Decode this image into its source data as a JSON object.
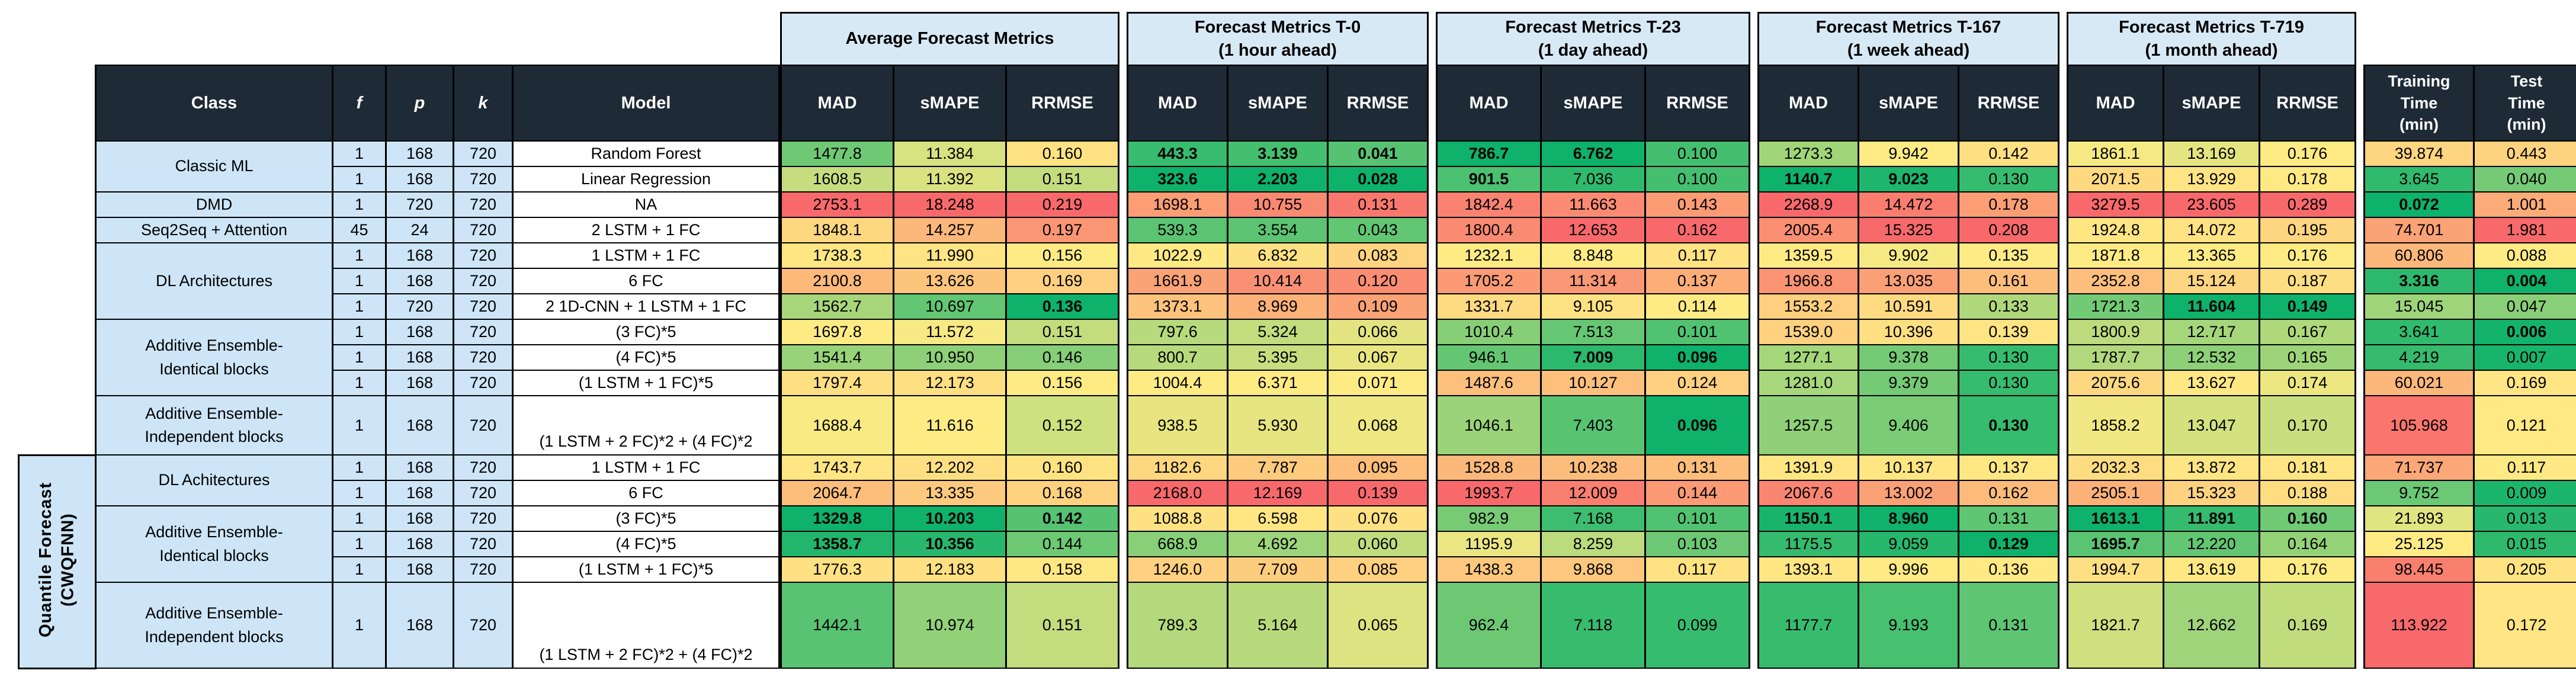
{
  "ui": {
    "left_header": {
      "class": "Class",
      "f": "f",
      "p": "p",
      "k": "k",
      "model": "Model"
    },
    "metric_subheaders": [
      "MAD",
      "sMAPE",
      "RRMSE"
    ],
    "group_titles": [
      [
        "Average Forecast Metrics",
        ""
      ],
      [
        "Forecast Metrics T-0",
        "(1 hour ahead)"
      ],
      [
        "Forecast Metrics T-23",
        "(1 day ahead)"
      ],
      [
        "Forecast Metrics T-167",
        "(1 week ahead)"
      ],
      [
        "Forecast Metrics T-719",
        "(1 month ahead)"
      ]
    ],
    "time_headers": [
      [
        "Training",
        "Time",
        "(min)"
      ],
      [
        "Test",
        "Time",
        "(min)"
      ]
    ],
    "quantile_section_label": "Quantile Forecast\n(CWQFNN)",
    "colors": {
      "header_bg": "#1e2a36",
      "header_text": "#ffffff",
      "group_header_bg": "#d8e9f6",
      "row_label_bg": "#cde5f7",
      "border": "#000000",
      "scale_green_best": "#0eb26a",
      "scale_yellow_mid": "#ffeb84",
      "scale_red_worst": "#f8696b"
    }
  },
  "chart_data": {
    "type": "table",
    "title": "Forecast metric comparison of model classes (color scale per column: green = best, red = worst)",
    "columns": [
      "Avg MAD",
      "Avg sMAPE",
      "Avg RRMSE",
      "T-0 MAD",
      "T-0 sMAPE",
      "T-0 RRMSE",
      "T-23 MAD",
      "T-23 sMAPE",
      "T-23 RRMSE",
      "T-167 MAD",
      "T-167 sMAPE",
      "T-167 RRMSE",
      "T-719 MAD",
      "T-719 sMAPE",
      "T-719 RRMSE",
      "Training Time (min)",
      "Test Time (min)"
    ],
    "rows": [
      {
        "section": "main",
        "class": "Classic ML",
        "f": "1",
        "p": "168",
        "k": "720",
        "model": "Random Forest",
        "values": [
          "1477.8",
          "11.384",
          "0.160",
          "443.3",
          "3.139",
          "0.041",
          "786.7",
          "6.762",
          "0.100",
          "1273.3",
          "9.942",
          "0.142",
          "1861.1",
          "13.169",
          "0.176",
          "39.874",
          "0.443"
        ],
        "bold": [
          3,
          4,
          5,
          6,
          7
        ]
      },
      {
        "section": "main",
        "class": "Classic ML",
        "f": "1",
        "p": "168",
        "k": "720",
        "model": "Linear Regression",
        "values": [
          "1608.5",
          "11.392",
          "0.151",
          "323.6",
          "2.203",
          "0.028",
          "901.5",
          "7.036",
          "0.100",
          "1140.7",
          "9.023",
          "0.130",
          "2071.5",
          "13.929",
          "0.178",
          "3.645",
          "0.040"
        ],
        "bold": [
          3,
          4,
          5,
          6,
          9,
          10
        ]
      },
      {
        "section": "main",
        "class": "DMD",
        "f": "1",
        "p": "720",
        "k": "720",
        "model": "NA",
        "values": [
          "2753.1",
          "18.248",
          "0.219",
          "1698.1",
          "10.755",
          "0.131",
          "1842.4",
          "11.663",
          "0.143",
          "2268.9",
          "14.472",
          "0.178",
          "3279.5",
          "23.605",
          "0.289",
          "0.072",
          "1.001"
        ],
        "bold": [
          15
        ]
      },
      {
        "section": "main",
        "class": "Seq2Seq + Attention",
        "f": "45",
        "p": "24",
        "k": "720",
        "model": "2 LSTM + 1 FC",
        "values": [
          "1848.1",
          "14.257",
          "0.197",
          "539.3",
          "3.554",
          "0.043",
          "1800.4",
          "12.653",
          "0.162",
          "2005.4",
          "15.325",
          "0.208",
          "1924.8",
          "14.072",
          "0.195",
          "74.701",
          "1.981"
        ],
        "bold": []
      },
      {
        "section": "main",
        "class": "DL Architectures",
        "f": "1",
        "p": "168",
        "k": "720",
        "model": "1 LSTM + 1 FC",
        "values": [
          "1738.3",
          "11.990",
          "0.156",
          "1022.9",
          "6.832",
          "0.083",
          "1232.1",
          "8.848",
          "0.117",
          "1359.5",
          "9.902",
          "0.135",
          "1871.8",
          "13.365",
          "0.176",
          "60.806",
          "0.088"
        ],
        "bold": []
      },
      {
        "section": "main",
        "class": "DL Architectures",
        "f": "1",
        "p": "168",
        "k": "720",
        "model": "6 FC",
        "values": [
          "2100.8",
          "13.626",
          "0.169",
          "1661.9",
          "10.414",
          "0.120",
          "1705.2",
          "11.314",
          "0.137",
          "1966.8",
          "13.035",
          "0.161",
          "2352.8",
          "15.124",
          "0.187",
          "3.316",
          "0.004"
        ],
        "bold": [
          15,
          16
        ]
      },
      {
        "section": "main",
        "class": "DL Architectures",
        "f": "1",
        "p": "720",
        "k": "720",
        "model": "2 1D-CNN + 1 LSTM + 1 FC",
        "values": [
          "1562.7",
          "10.697",
          "0.136",
          "1373.1",
          "8.969",
          "0.109",
          "1331.7",
          "9.105",
          "0.114",
          "1553.2",
          "10.591",
          "0.133",
          "1721.3",
          "11.604",
          "0.149",
          "15.045",
          "0.047"
        ],
        "bold": [
          2,
          13,
          14
        ]
      },
      {
        "section": "main",
        "class": "Additive Ensemble-\nIdentical blocks",
        "f": "1",
        "p": "168",
        "k": "720",
        "model": "(3 FC)*5",
        "values": [
          "1697.8",
          "11.572",
          "0.151",
          "797.6",
          "5.324",
          "0.066",
          "1010.4",
          "7.513",
          "0.101",
          "1539.0",
          "10.396",
          "0.139",
          "1800.9",
          "12.717",
          "0.167",
          "3.641",
          "0.006"
        ],
        "bold": [
          16
        ]
      },
      {
        "section": "main",
        "class": "Additive Ensemble-\nIdentical blocks",
        "f": "1",
        "p": "168",
        "k": "720",
        "model": "(4 FC)*5",
        "values": [
          "1541.4",
          "10.950",
          "0.146",
          "800.7",
          "5.395",
          "0.067",
          "946.1",
          "7.009",
          "0.096",
          "1277.1",
          "9.378",
          "0.130",
          "1787.7",
          "12.532",
          "0.165",
          "4.219",
          "0.007"
        ],
        "bold": [
          7,
          8
        ]
      },
      {
        "section": "main",
        "class": "Additive Ensemble-\nIdentical blocks",
        "f": "1",
        "p": "168",
        "k": "720",
        "model": "(1 LSTM + 1 FC)*5",
        "values": [
          "1797.4",
          "12.173",
          "0.156",
          "1004.4",
          "6.371",
          "0.071",
          "1487.6",
          "10.127",
          "0.124",
          "1281.0",
          "9.379",
          "0.130",
          "2075.6",
          "13.627",
          "0.174",
          "60.021",
          "0.169"
        ],
        "bold": []
      },
      {
        "section": "main",
        "class": "Additive Ensemble-\nIndependent blocks",
        "f": "1",
        "p": "168",
        "k": "720",
        "model": "(1 LSTM + 2 FC)*2 + (4 FC)*2",
        "values": [
          "1688.4",
          "11.616",
          "0.152",
          "938.5",
          "5.930",
          "0.068",
          "1046.1",
          "7.403",
          "0.096",
          "1257.5",
          "9.406",
          "0.130",
          "1858.2",
          "13.047",
          "0.170",
          "105.968",
          "0.121"
        ],
        "bold": [
          8,
          11
        ]
      },
      {
        "section": "quantile",
        "class": "DL Achitectures",
        "f": "1",
        "p": "168",
        "k": "720",
        "model": "1 LSTM + 1 FC",
        "values": [
          "1743.7",
          "12.202",
          "0.160",
          "1182.6",
          "7.787",
          "0.095",
          "1528.8",
          "10.238",
          "0.131",
          "1391.9",
          "10.137",
          "0.137",
          "2032.3",
          "13.872",
          "0.181",
          "71.737",
          "0.117"
        ],
        "bold": []
      },
      {
        "section": "quantile",
        "class": "DL Achitectures",
        "f": "1",
        "p": "168",
        "k": "720",
        "model": "6 FC",
        "values": [
          "2064.7",
          "13.335",
          "0.168",
          "2168.0",
          "12.169",
          "0.139",
          "1993.7",
          "12.009",
          "0.144",
          "2067.6",
          "13.002",
          "0.162",
          "2505.1",
          "15.323",
          "0.188",
          "9.752",
          "0.009"
        ],
        "bold": []
      },
      {
        "section": "quantile",
        "class": "Additive Ensemble-\nIdentical blocks",
        "f": "1",
        "p": "168",
        "k": "720",
        "model": "(3 FC)*5",
        "values": [
          "1329.8",
          "10.203",
          "0.142",
          "1088.8",
          "6.598",
          "0.076",
          "982.9",
          "7.168",
          "0.101",
          "1150.1",
          "8.960",
          "0.131",
          "1613.1",
          "11.891",
          "0.160",
          "21.893",
          "0.013"
        ],
        "bold": [
          0,
          1,
          2,
          9,
          10,
          12,
          13,
          14
        ]
      },
      {
        "section": "quantile",
        "class": "Additive Ensemble-\nIdentical blocks",
        "f": "1",
        "p": "168",
        "k": "720",
        "model": "(4 FC)*5",
        "values": [
          "1358.7",
          "10.356",
          "0.144",
          "668.9",
          "4.692",
          "0.060",
          "1195.9",
          "8.259",
          "0.103",
          "1175.5",
          "9.059",
          "0.129",
          "1695.7",
          "12.220",
          "0.164",
          "25.125",
          "0.015"
        ],
        "bold": [
          0,
          1,
          11,
          12
        ]
      },
      {
        "section": "quantile",
        "class": "Additive Ensemble-\nIdentical blocks",
        "f": "1",
        "p": "168",
        "k": "720",
        "model": "(1 LSTM + 1 FC)*5",
        "values": [
          "1776.3",
          "12.183",
          "0.158",
          "1246.0",
          "7.709",
          "0.085",
          "1438.3",
          "9.868",
          "0.117",
          "1393.1",
          "9.996",
          "0.136",
          "1994.7",
          "13.619",
          "0.176",
          "98.445",
          "0.205"
        ],
        "bold": []
      },
      {
        "section": "quantile",
        "class": "Additive Ensemble-\nIndependent blocks",
        "f": "1",
        "p": "168",
        "k": "720",
        "model": "(1 LSTM + 2 FC)*2 + (4 FC)*2",
        "values": [
          "1442.1",
          "10.974",
          "0.151",
          "789.3",
          "5.164",
          "0.065",
          "962.4",
          "7.118",
          "0.099",
          "1177.7",
          "9.193",
          "0.131",
          "1821.7",
          "12.662",
          "0.169",
          "113.922",
          "0.172"
        ],
        "bold": []
      }
    ]
  }
}
